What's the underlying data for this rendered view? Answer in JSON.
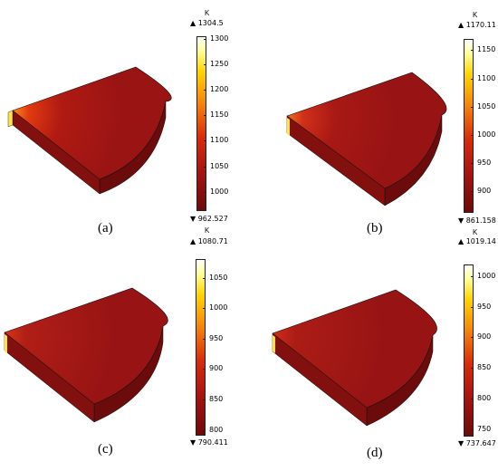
{
  "panels": [
    {
      "caption": "(a)",
      "unit": "K",
      "max": "1304.5",
      "min": "962.527",
      "ticks": [
        "1300",
        "1250",
        "1200",
        "1150",
        "1100",
        "1050",
        "1000"
      ],
      "tmax": 1300,
      "tmin": 1000
    },
    {
      "caption": "(b)",
      "unit": "K",
      "max": "1170.11",
      "min": "861.158",
      "ticks": [
        "1150",
        "1100",
        "1050",
        "1000",
        "950",
        "900"
      ],
      "tmax": 1150,
      "tmin": 900
    },
    {
      "caption": "(c)",
      "unit": "K",
      "max": "1080.71",
      "min": "790.411",
      "ticks": [
        "1050",
        "1000",
        "950",
        "900",
        "850",
        "800"
      ],
      "tmax": 1050,
      "tmin": 800
    },
    {
      "caption": "(d)",
      "unit": "K",
      "max": "1019.14",
      "min": "737.647",
      "ticks": [
        "1000",
        "950",
        "900",
        "850",
        "800",
        "750"
      ],
      "tmax": 1000,
      "tmin": 750
    }
  ],
  "colors": {
    "model_top": "#9c1414",
    "model_side": "#7f0e0e",
    "model_curve": "#6b0b0b",
    "hotspot": "#ffe24a"
  }
}
